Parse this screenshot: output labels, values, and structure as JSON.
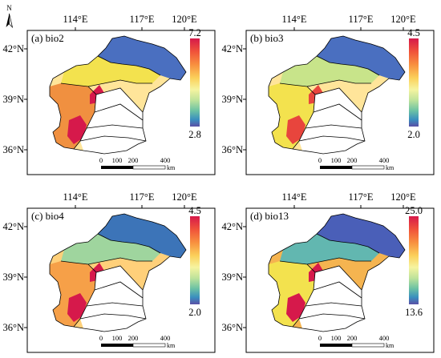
{
  "north_arrow": {
    "label": "N"
  },
  "panels": [
    {
      "id": "a",
      "title": "(a)  bio2",
      "legend": {
        "max": "7.2",
        "min": "2.8"
      },
      "lon_ticks": [
        "114°E",
        "117°E",
        "120°E"
      ],
      "lat_ticks": [
        "42°N",
        "39°N",
        "36°N"
      ],
      "scale": {
        "labels": [
          "0",
          "100",
          "200",
          "400"
        ],
        "unit": "km"
      },
      "colors": {
        "north": "#4a6fc0",
        "mid": "#f3e24e",
        "south": "#f09040",
        "hot": "#d6194b",
        "light": "#ffe59a"
      }
    },
    {
      "id": "b",
      "title": "(b)  bio3",
      "legend": {
        "max": "4.5",
        "min": "2.0"
      },
      "lon_ticks": [
        "114°E",
        "117°E",
        "120°E"
      ],
      "lat_ticks": [
        "42°N",
        "39°N",
        "36°N"
      ],
      "scale": {
        "labels": [
          "0",
          "100",
          "200",
          "400"
        ],
        "unit": "km"
      },
      "colors": {
        "north": "#4a6fc0",
        "mid": "#c8e48a",
        "south": "#f3e24e",
        "hot": "#e8453d",
        "light": "#ffe59a"
      }
    },
    {
      "id": "c",
      "title": "(c)  bio4",
      "legend": {
        "max": "4.5",
        "min": "2.0"
      },
      "lon_ticks": [
        "114°E",
        "117°E",
        "120°E"
      ],
      "lat_ticks": [
        "42°N",
        "39°N",
        "36°N"
      ],
      "scale": {
        "labels": [
          "0",
          "100",
          "200",
          "400"
        ],
        "unit": "km"
      },
      "colors": {
        "north": "#3c74b8",
        "mid": "#9fd59e",
        "south": "#f6a048",
        "hot": "#d6194b",
        "light": "#ffd07a"
      }
    },
    {
      "id": "d",
      "title": "(d)  bio13",
      "legend": {
        "max": "25.0",
        "min": "13.6"
      },
      "lon_ticks": [
        "114°E",
        "117°E",
        "120°E"
      ],
      "lat_ticks": [
        "42°N",
        "39°N",
        "36°N"
      ],
      "scale": {
        "labels": [
          "0",
          "100",
          "200",
          "400"
        ],
        "unit": "km"
      },
      "colors": {
        "north": "#4a5fb8",
        "mid": "#62b7b0",
        "south": "#f3e24e",
        "hot": "#d6194b",
        "light": "#f5b450"
      }
    }
  ]
}
